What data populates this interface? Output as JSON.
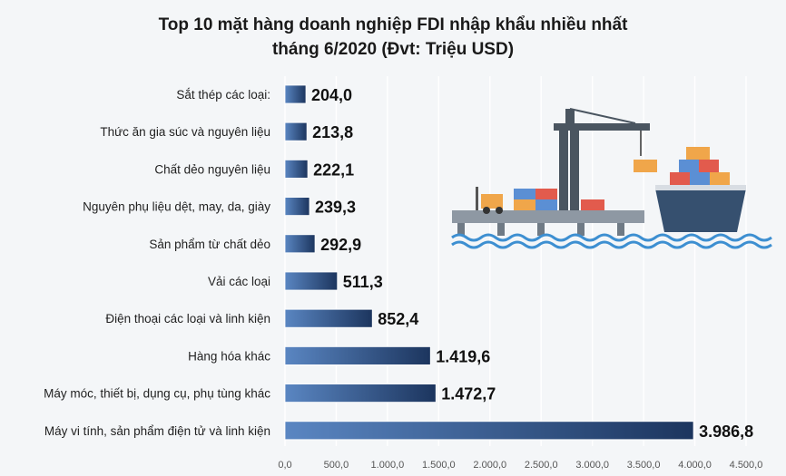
{
  "title_line1": "Top 10 mặt hàng doanh nghiệp FDI nhập khẩu nhiều nhất",
  "title_line2": "tháng 6/2020  (Đvt: Triệu USD)",
  "colors": {
    "bar_light": "#5a86c2",
    "bar_dark": "#1c355e",
    "grid": "#ffffff",
    "background": "#f4f6f8"
  },
  "chart_data": {
    "type": "bar",
    "orientation": "horizontal",
    "categories": [
      "Sắt thép các loại:",
      "Thức ăn gia súc và nguyên liệu",
      "Chất dẻo nguyên liệu",
      "Nguyên phụ liệu dệt, may, da, giày",
      "Sản phẩm từ chất dẻo",
      "Vải các loại",
      "Điện thoại các loại và linh kiện",
      "Hàng hóa khác",
      "Máy móc, thiết bị, dụng cụ, phụ tùng khác",
      "Máy vi tính, sản phẩm điện tử và linh kiện"
    ],
    "values": [
      204.0,
      213.8,
      222.1,
      239.3,
      292.9,
      511.3,
      852.4,
      1419.6,
      1472.7,
      3986.8
    ],
    "value_labels": [
      "204,0",
      "213,8",
      "222,1",
      "239,3",
      "292,9",
      "511,3",
      "852,4",
      "1.419,6",
      "1.472,7",
      "3.986,8"
    ],
    "xlim": [
      0,
      4500
    ],
    "xticks": [
      0,
      500,
      1000,
      1500,
      2000,
      2500,
      3000,
      3500,
      4000,
      4500
    ],
    "xtick_labels": [
      "0,0",
      "500,0",
      "1.000,0",
      "1.500,0",
      "2.000,0",
      "2.500,0",
      "3.000,0",
      "3.500,0",
      "4.000,0",
      "4.500,0"
    ],
    "grid": true,
    "legend": false
  }
}
